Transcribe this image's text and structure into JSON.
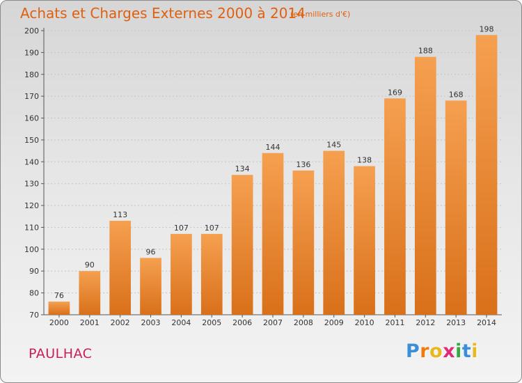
{
  "title": "Achats et Charges Externes 2000 à 2014",
  "unit": "(en milliers d'€)",
  "city": "PAULHAC",
  "logo": {
    "letters": [
      "P",
      "r",
      "o",
      "x",
      "i",
      "t",
      "i"
    ],
    "colors": [
      "#3a8fd8",
      "#f07a10",
      "#e8b820",
      "#e02a7a",
      "#35a845",
      "#3a8fd8",
      "#e8b820"
    ]
  },
  "colors": {
    "bar": "#f08a25",
    "title": "#e06010",
    "city": "#c81e5a"
  },
  "chart_data": {
    "type": "bar",
    "title": "Achats et Charges Externes 2000 à 2014",
    "subtitle": "(en milliers d'€)",
    "categories": [
      "2000",
      "2001",
      "2002",
      "2003",
      "2004",
      "2005",
      "2006",
      "2007",
      "2008",
      "2009",
      "2010",
      "2011",
      "2012",
      "2013",
      "2014"
    ],
    "values": [
      76,
      90,
      113,
      96,
      107,
      107,
      134,
      144,
      136,
      145,
      138,
      169,
      188,
      168,
      198
    ],
    "ylim": [
      70,
      200
    ],
    "yticks": [
      70,
      80,
      90,
      100,
      110,
      120,
      130,
      140,
      150,
      160,
      170,
      180,
      190,
      200
    ],
    "grid": true,
    "xlabel": "",
    "ylabel": ""
  }
}
